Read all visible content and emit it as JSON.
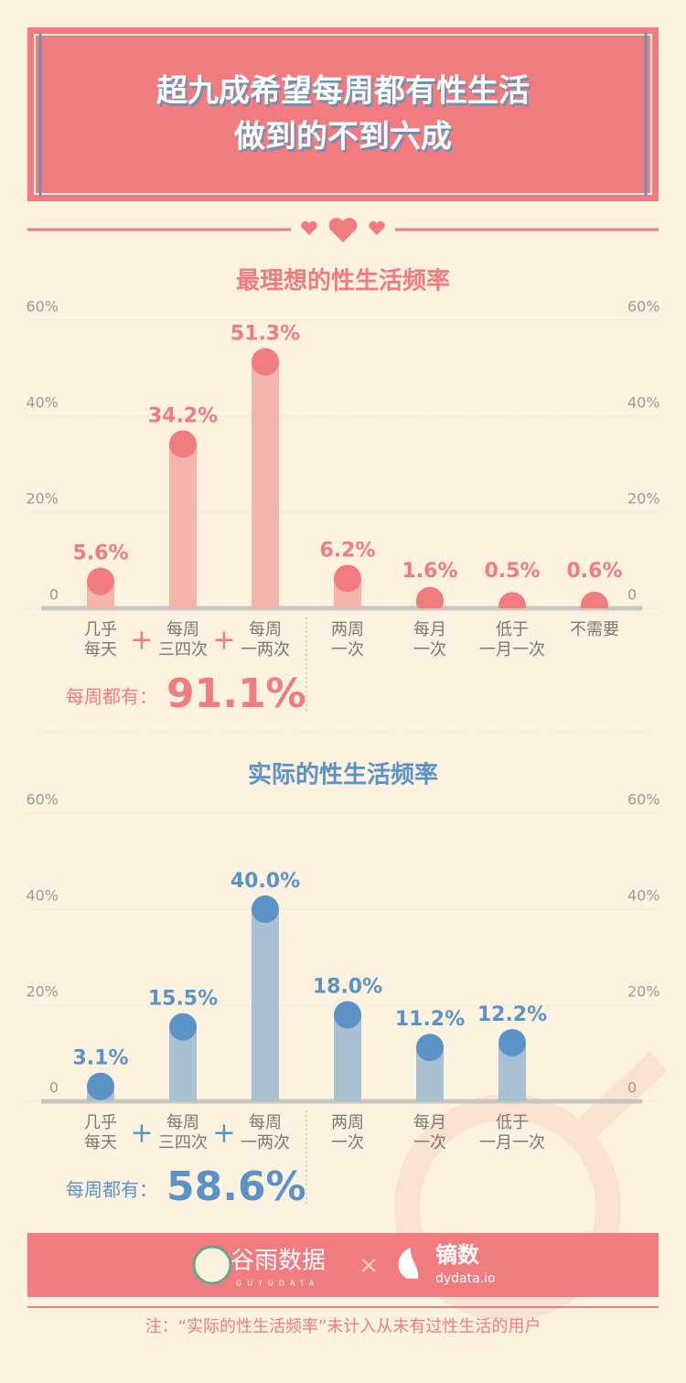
{
  "header": {
    "title_lines": [
      "超九成希望每周都有性生活",
      "做到的不到六成"
    ]
  },
  "chart_data": [
    {
      "type": "bar",
      "title": "最理想的性生活频率",
      "categories": [
        "几乎\n每天",
        "每周\n三四次",
        "每周\n一两次",
        "两周\n一次",
        "每月\n一次",
        "低于\n一月一次",
        "不需要"
      ],
      "values": [
        5.6,
        34.2,
        51.3,
        6.2,
        1.6,
        0.5,
        0.6
      ],
      "value_labels": [
        "5.6%",
        "34.2%",
        "51.3%",
        "6.2%",
        "1.6%",
        "0.5%",
        "0.6%"
      ],
      "color": "#f07c80",
      "bar_color": "#f4b4ae",
      "ylim": [
        0,
        60
      ],
      "yticks": [
        0,
        {
          "value": 20,
          "label": "20%"
        },
        {
          "value": 40,
          "label": "40%"
        },
        {
          "value": 60,
          "label": "60%"
        }
      ],
      "grid": true,
      "summary_label": "每周都有：",
      "summary_value": "91.1%"
    },
    {
      "type": "bar",
      "title": "实际的性生活频率",
      "categories": [
        "几乎\n每天",
        "每周\n三四次",
        "每周\n一两次",
        "两周\n一次",
        "每月\n一次",
        "低于\n一月一次"
      ],
      "values": [
        3.1,
        15.5,
        40.0,
        18.0,
        11.2,
        12.2
      ],
      "value_labels": [
        "3.1%",
        "15.5%",
        "40.0%",
        "18.0%",
        "11.2%",
        "12.2%"
      ],
      "color": "#5b93c7",
      "bar_color": "#a9bfd2",
      "ylim": [
        0,
        60
      ],
      "yticks": [
        0,
        {
          "value": 20,
          "label": "20%"
        },
        {
          "value": 40,
          "label": "40%"
        },
        {
          "value": 60,
          "label": "60%"
        }
      ],
      "grid": true,
      "summary_label": "每周都有：",
      "summary_value": "58.6%"
    }
  ],
  "footer": {
    "brand1": "谷雨数据",
    "brand1_sub": "GUYUDATA",
    "times": "×",
    "brand2": "镝数",
    "brand2_sub": "dydata.io",
    "note": "注：“实际的性生活频率”未计入从未有过性生活的用户"
  }
}
